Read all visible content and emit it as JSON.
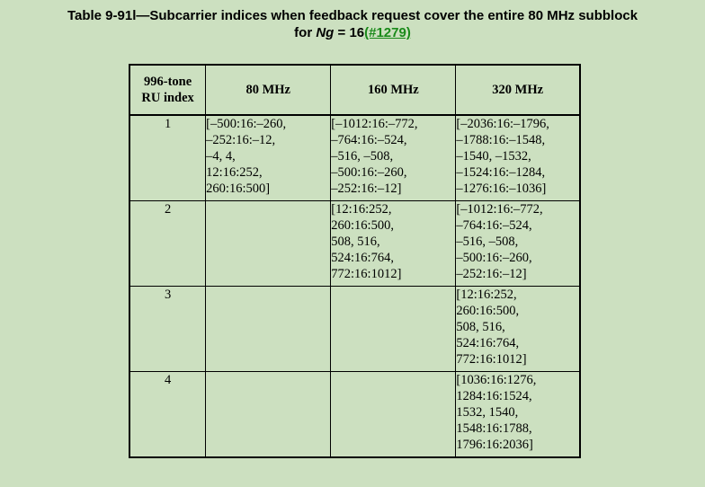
{
  "caption": {
    "line1": "Table 9-91l—Subcarrier indices when feedback request cover the entire 80 MHz subblock",
    "line2_prefix": "for ",
    "line2_var": "Ng",
    "line2_mid": " = 16",
    "line2_link": "(#1279)"
  },
  "table": {
    "headers": [
      "996-tone RU index",
      "80 MHz",
      "160 MHz",
      "320 MHz"
    ],
    "header_ru_line1": "996-tone",
    "header_ru_line2": "RU index",
    "rows": [
      {
        "index": "1",
        "c80": [
          "[–500:16:–260,",
          "–252:16:–12,",
          "–4, 4,",
          "12:16:252,",
          "260:16:500]"
        ],
        "c160": [
          "[–1012:16:–772,",
          "–764:16:–524,",
          "–516, –508,",
          "–500:16:–260,",
          "–252:16:–12]"
        ],
        "c320": [
          "[–2036:16:–1796,",
          "–1788:16:–1548,",
          "–1540, –1532,",
          "–1524:16:–1284,",
          "–1276:16:–1036]"
        ]
      },
      {
        "index": "2",
        "c80": [],
        "c160": [
          "[12:16:252,",
          "260:16:500,",
          "508, 516,",
          "524:16:764,",
          "772:16:1012]"
        ],
        "c320": [
          "[–1012:16:–772,",
          "–764:16:–524,",
          "–516, –508,",
          "–500:16:–260,",
          "–252:16:–12]"
        ]
      },
      {
        "index": "3",
        "c80": [],
        "c160": [],
        "c320": [
          "[12:16:252,",
          "260:16:500,",
          "508, 516,",
          "524:16:764,",
          "772:16:1012]"
        ]
      },
      {
        "index": "4",
        "c80": [],
        "c160": [],
        "c320": [
          "[1036:16:1276,",
          "1284:16:1524,",
          "1532, 1540,",
          "1548:16:1788,",
          "1796:16:2036]"
        ]
      }
    ]
  }
}
